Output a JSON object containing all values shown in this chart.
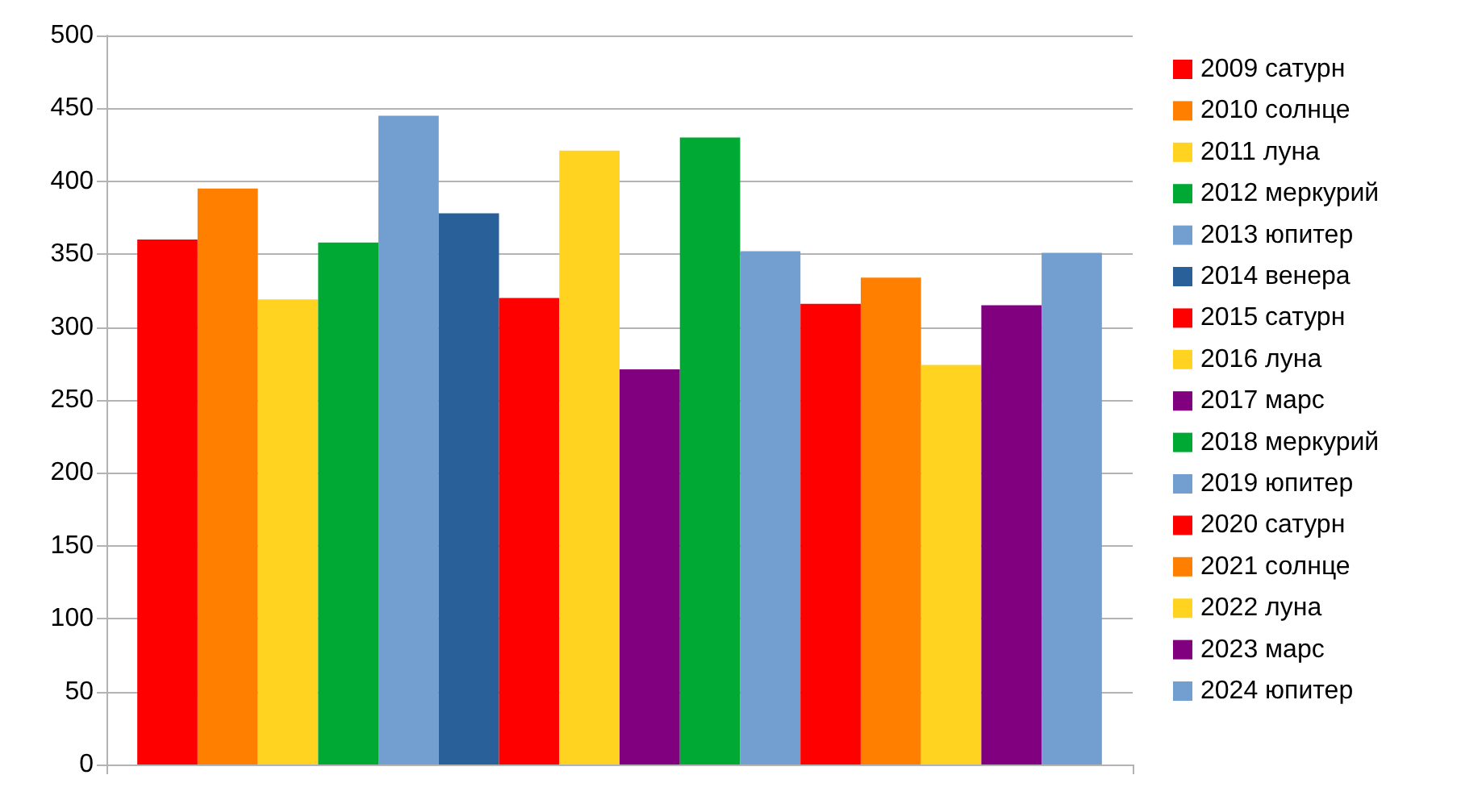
{
  "chart_data": {
    "type": "bar",
    "categories": [
      null
    ],
    "series": [
      {
        "name": "2009 сатурн",
        "color": "#ff0000",
        "values": [
          360
        ]
      },
      {
        "name": "2010 солнце",
        "color": "#ff8000",
        "values": [
          395
        ]
      },
      {
        "name": "2011 луна",
        "color": "#ffd320",
        "values": [
          319
        ]
      },
      {
        "name": "2012 меркурий",
        "color": "#00a933",
        "values": [
          358
        ]
      },
      {
        "name": "2013 юпитер",
        "color": "#729fcf",
        "values": [
          445
        ]
      },
      {
        "name": "2014 венера",
        "color": "#2a6099",
        "values": [
          378
        ]
      },
      {
        "name": "2015 сатурн",
        "color": "#ff0000",
        "values": [
          320
        ]
      },
      {
        "name": "2016 луна",
        "color": "#ffd320",
        "values": [
          421
        ]
      },
      {
        "name": "2017 марс",
        "color": "#800080",
        "values": [
          271
        ]
      },
      {
        "name": "2018 меркурий",
        "color": "#00a933",
        "values": [
          430
        ]
      },
      {
        "name": "2019 юпитер",
        "color": "#729fcf",
        "values": [
          352
        ]
      },
      {
        "name": "2020 сатурн",
        "color": "#ff0000",
        "values": [
          316
        ]
      },
      {
        "name": "2021 солнце",
        "color": "#ff8000",
        "values": [
          334
        ]
      },
      {
        "name": "2022 луна",
        "color": "#ffd320",
        "values": [
          274
        ]
      },
      {
        "name": "2023 марс",
        "color": "#800080",
        "values": [
          315
        ]
      },
      {
        "name": "2024 юпитер",
        "color": "#729fcf",
        "values": [
          351
        ]
      }
    ],
    "ylim": [
      0,
      500
    ],
    "yticks": [
      0,
      50,
      100,
      150,
      200,
      250,
      300,
      350,
      400,
      450,
      500
    ],
    "grid": "y",
    "legend": "right"
  }
}
